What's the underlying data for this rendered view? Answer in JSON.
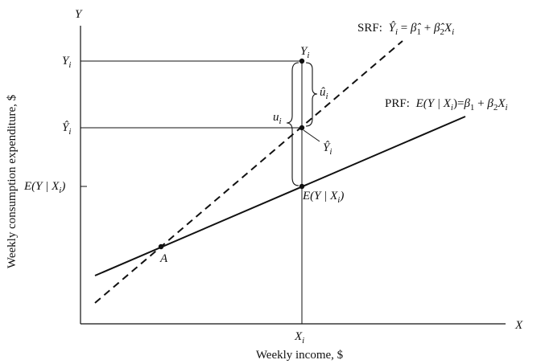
{
  "axes": {
    "y_axis_letter": "Y",
    "x_axis_letter": "X",
    "y_title": "Weekly consumption expenditure, $",
    "x_title": "Weekly income, $",
    "x_tick": "X",
    "x_tick_sub": "i"
  },
  "y_ticks": {
    "yi_main": "Y",
    "yi_sub": "i",
    "yhat_main": "Ŷ",
    "yhat_sub": "i",
    "e_main": "E(Y | X",
    "e_sub": "i",
    "e_close": ")"
  },
  "srf": {
    "prefix": "SRF:",
    "lhs": "Ŷ",
    "lhs_sub": "i",
    "eq": " = ",
    "b1": "β̂",
    "b1_sub": "1",
    "plus": " + ",
    "b2": "β̂",
    "b2_sub": "2",
    "x": "X",
    "x_sub": "i"
  },
  "prf": {
    "prefix": "PRF:",
    "lhs": "E(Y | X",
    "lhs_sub": "i",
    "lhs_close": ")",
    "eq": "=",
    "b1": "β",
    "b1_sub": "1",
    "plus": " + ",
    "b2": "β",
    "b2_sub": "2",
    "x": "X",
    "x_sub": "i"
  },
  "point_labels": {
    "yi_main": "Y",
    "yi_sub": "i",
    "yhat_main": "Ŷ",
    "yhat_sub": "i",
    "e_main": "E(Y | X",
    "e_sub": "i",
    "e_close": ")",
    "a": "A"
  },
  "residual_labels": {
    "uhat_main": "û",
    "uhat_sub": "i",
    "u_main": "u",
    "u_sub": "i"
  }
}
